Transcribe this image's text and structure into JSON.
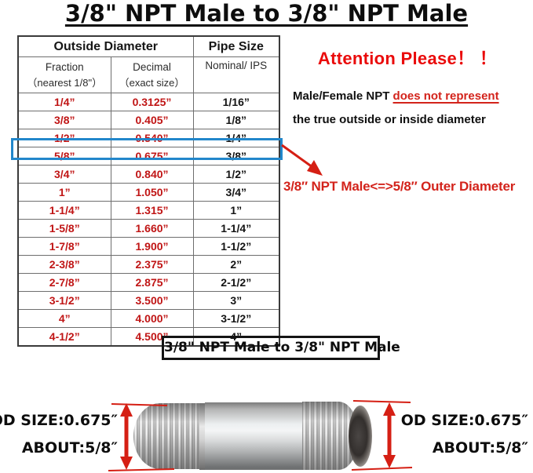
{
  "title": "3/8\" NPT Male to 3/8\" NPT Male",
  "table": {
    "header": {
      "group1": "Outside Diameter",
      "group2": "Pipe Size",
      "col1_line1": "Fraction",
      "col1_line2": "（nearest 1/8\"）",
      "col2_line1": "Decimal",
      "col2_line2": "（exact size）",
      "col3_line1": "Nominal/ IPS"
    },
    "highlight_row_index": 3,
    "rows": [
      [
        "1/4”",
        "0.3125”",
        "1/16”"
      ],
      [
        "3/8”",
        "0.405”",
        "1/8”"
      ],
      [
        "1/2”",
        "0.540”",
        "1/4”"
      ],
      [
        "5/8”",
        "0.675”",
        "3/8”"
      ],
      [
        "3/4”",
        "0.840”",
        "1/2”"
      ],
      [
        "1”",
        "1.050”",
        "3/4”"
      ],
      [
        "1-1/4”",
        "1.315”",
        "1”"
      ],
      [
        "1-5/8”",
        "1.660”",
        "1-1/4”"
      ],
      [
        "1-7/8”",
        "1.900”",
        "1-1/2”"
      ],
      [
        "2-3/8”",
        "2.375”",
        "2”"
      ],
      [
        "2-7/8”",
        "2.875”",
        "2-1/2”"
      ],
      [
        "3-1/2”",
        "3.500”",
        "3”"
      ],
      [
        "4”",
        "4.000”",
        "3-1/2”"
      ],
      [
        "4-1/2”",
        "4.500”",
        "4”"
      ]
    ]
  },
  "attention": {
    "heading": "Attention Please！ ！",
    "line1_black": "Male/Female NPT ",
    "line1_red": "does not represent",
    "line2": "the true outside or inside diameter",
    "mapping_note": "3/8″ NPT Male<=>5/8″ Outer Diameter"
  },
  "caption": "3/8\" NPT Male to 3/8\" NPT Male",
  "pipe": {
    "left_label_line1": "OD SIZE:0.675″",
    "left_label_line2": "ABOUT:5/8″",
    "right_label_line1": "OD SIZE:0.675″",
    "right_label_line2": "ABOUT:5/8″"
  },
  "colors": {
    "table_value_red": "#c01515",
    "attention_red": "#ea0b0b",
    "note_red": "#d3231b",
    "arrow_red": "#d51f14",
    "highlight_blue": "#2287cb"
  }
}
